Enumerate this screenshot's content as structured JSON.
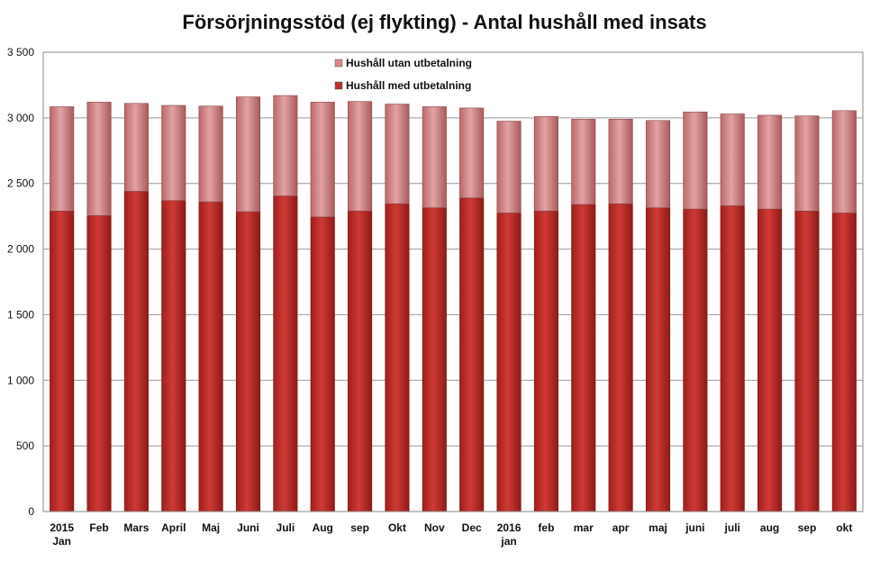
{
  "chart_data": {
    "type": "bar",
    "stacked": true,
    "title": "Försörjningsstöd (ej flykting) - Antal hushåll med insats",
    "xlabel": "",
    "ylabel": "",
    "ylim": [
      0,
      3500
    ],
    "yticks": [
      0,
      500,
      1000,
      1500,
      2000,
      2500,
      3000,
      3500
    ],
    "ytick_labels": [
      "0",
      "500",
      "1 000",
      "1 500",
      "2 000",
      "2 500",
      "3 000",
      "3 500"
    ],
    "grid": true,
    "legend_position": "top-center",
    "categories": [
      [
        "2015",
        "Jan"
      ],
      [
        "Feb"
      ],
      [
        "Mars"
      ],
      [
        "April"
      ],
      [
        "Maj"
      ],
      [
        "Juni"
      ],
      [
        "Juli"
      ],
      [
        "Aug"
      ],
      [
        "sep"
      ],
      [
        "Okt"
      ],
      [
        "Nov"
      ],
      [
        "Dec"
      ],
      [
        "2016",
        "jan"
      ],
      [
        "feb"
      ],
      [
        "mar"
      ],
      [
        "apr"
      ],
      [
        "maj"
      ],
      [
        "juni"
      ],
      [
        "juli"
      ],
      [
        "aug"
      ],
      [
        "sep"
      ],
      [
        "okt"
      ]
    ],
    "series": [
      {
        "name": "Hushåll med utbetalning",
        "color": "#c0302c",
        "values": [
          2290,
          2255,
          2440,
          2370,
          2360,
          2285,
          2405,
          2245,
          2290,
          2345,
          2315,
          2390,
          2275,
          2290,
          2340,
          2345,
          2315,
          2305,
          2330,
          2305,
          2290,
          2275
        ]
      },
      {
        "name": "Hushåll utan utbetalning",
        "color": "#d8898a",
        "values": [
          795,
          865,
          670,
          725,
          730,
          875,
          765,
          875,
          835,
          760,
          770,
          685,
          700,
          720,
          650,
          645,
          665,
          740,
          700,
          715,
          725,
          780
        ]
      }
    ]
  }
}
